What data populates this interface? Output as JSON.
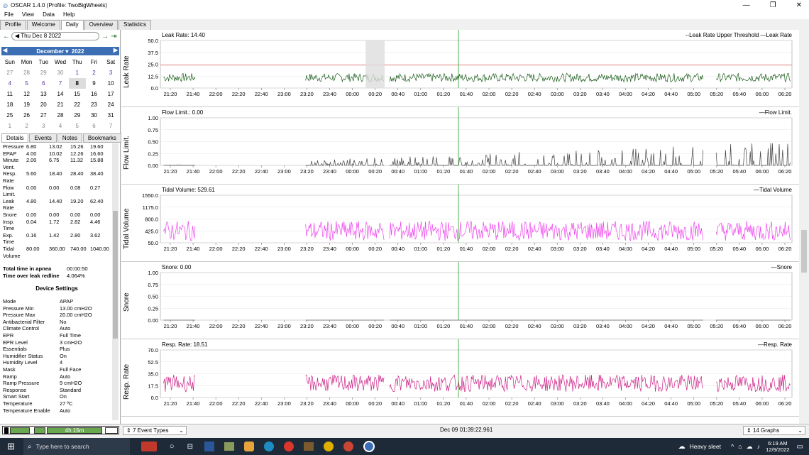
{
  "window": {
    "title": "OSCAR 1.4.0 (Profile: TwoBigWheels)"
  },
  "menu": [
    "File",
    "View",
    "Data",
    "Help"
  ],
  "tabs": [
    "Profile",
    "Welcome",
    "Daily",
    "Overview",
    "Statistics"
  ],
  "datebar": {
    "date": "Thu Dec 8 2022"
  },
  "calendar": {
    "month": "December",
    "year": "2022",
    "dow": [
      "Sun",
      "Mon",
      "Tue",
      "Wed",
      "Thu",
      "Fri",
      "Sat"
    ],
    "days": [
      [
        "27",
        "28",
        "29",
        "30",
        "1",
        "2",
        "3"
      ],
      [
        "4",
        "5",
        "6",
        "7",
        "8",
        "9",
        "10"
      ],
      [
        "11",
        "12",
        "13",
        "14",
        "15",
        "16",
        "17"
      ],
      [
        "18",
        "19",
        "20",
        "21",
        "22",
        "23",
        "24"
      ],
      [
        "25",
        "26",
        "27",
        "28",
        "29",
        "30",
        "31"
      ],
      [
        "1",
        "2",
        "3",
        "4",
        "5",
        "6",
        "7"
      ]
    ]
  },
  "subtabs": [
    "Details",
    "Events",
    "Notes",
    "Bookmarks"
  ],
  "stats": [
    [
      "Pressure",
      "6.80",
      "13.02",
      "15.26",
      "19.60"
    ],
    [
      "EPAP",
      "4.00",
      "10.02",
      "12.26",
      "16.60"
    ],
    [
      "Minute",
      "2.00",
      "6.75",
      "11.32",
      "15.88"
    ],
    [
      "Vent.",
      "",
      "",
      "",
      ""
    ],
    [
      "Resp.",
      "5.60",
      "18.40",
      "28.40",
      "38.40"
    ],
    [
      "Rate",
      "",
      "",
      "",
      ""
    ],
    [
      "Flow",
      "0.00",
      "0.00",
      "0.08",
      "0.27"
    ],
    [
      "Limit.",
      "",
      "",
      "",
      ""
    ],
    [
      "Leak",
      "4.80",
      "14.40",
      "19.20",
      "62.40"
    ],
    [
      "Rate",
      "",
      "",
      "",
      ""
    ],
    [
      "Snore",
      "0.00",
      "0.00",
      "0.00",
      "0.00"
    ],
    [
      "Insp.",
      "0.04",
      "1.72",
      "2.82",
      "4.46"
    ],
    [
      "Time",
      "",
      "",
      "",
      ""
    ],
    [
      "Exp.",
      "0.16",
      "1.42",
      "2.80",
      "3.62"
    ],
    [
      "Time",
      "",
      "",
      "",
      ""
    ],
    [
      "Tidal",
      "80.00",
      "360.00",
      "740.00",
      "1040.00"
    ],
    [
      "Volume",
      "",
      "",
      "",
      ""
    ]
  ],
  "totals": [
    [
      "Total time in apnea",
      "00:00:50"
    ],
    [
      "Time over leak redline",
      "4.064%"
    ]
  ],
  "device_settings_title": "Device Settings",
  "device_settings": [
    [
      "Mode",
      "APAP"
    ],
    [
      "Pressure Min",
      "13.00 cmH2O"
    ],
    [
      "Pressure Max",
      "20.00 cmH2O"
    ],
    [
      "Antibacterial Filter",
      "No"
    ],
    [
      "Climate Control",
      "Auto"
    ],
    [
      "EPR",
      "Full Time"
    ],
    [
      "EPR Level",
      "3 cmH2O"
    ],
    [
      "Essentials",
      "Plus"
    ],
    [
      "Humidifier Status",
      "On"
    ],
    [
      "Humidity Level",
      "4"
    ],
    [
      "Mask",
      "Full Face"
    ],
    [
      "Ramp",
      "Auto"
    ],
    [
      "Ramp Pressure",
      "9 cmH2O"
    ],
    [
      "Response",
      "Standard"
    ],
    [
      "Smart Start",
      "On"
    ],
    [
      "Temperature",
      "27 ºC"
    ],
    [
      "Temperature Enable",
      "Auto"
    ]
  ],
  "xticks": [
    "21:20",
    "21:40",
    "22:00",
    "22:20",
    "22:40",
    "23:00",
    "23:20",
    "23:40",
    "00:00",
    "00:20",
    "00:40",
    "01:00",
    "01:20",
    "01:40",
    "02:00",
    "02:20",
    "02:40",
    "03:00",
    "03:20",
    "03:40",
    "04:00",
    "04:20",
    "04:40",
    "05:00",
    "05:20",
    "05:40",
    "06:00",
    "06:20"
  ],
  "graphs": [
    {
      "ylabel": "Leak Rate",
      "title": "Leak Rate: 14.40",
      "legend": "--Leak Rate Upper Threshold —Leak Rate",
      "ticks": [
        "50.0",
        "37.5",
        "25.0",
        "12.5",
        "0.0"
      ],
      "color": "#1a5c1a"
    },
    {
      "ylabel": "Flow Limit.",
      "title": "Flow Limit.: 0.00",
      "legend": "—Flow Limit.",
      "ticks": [
        "1.00",
        "0.75",
        "0.50",
        "0.25",
        "0.00"
      ],
      "color": "#444444"
    },
    {
      "ylabel": "Tidal Volume",
      "title": "Tidal Volume: 529.61",
      "legend": "—Tidal Volume",
      "ticks": [
        "1550.0",
        "1175.0",
        "800.0",
        "425.0",
        "50.0"
      ],
      "color": "#ee44ee"
    },
    {
      "ylabel": "Snore",
      "title": "Snore: 0.00",
      "legend": "—Snore",
      "ticks": [
        "1.00",
        "0.75",
        "0.50",
        "0.25",
        "0.00"
      ],
      "color": "#666666"
    },
    {
      "ylabel": "Resp. Rate",
      "title": "Resp. Rate: 18.51",
      "legend": "—Resp. Rate",
      "ticks": [
        "70.0",
        "52.5",
        "35.0",
        "17.5",
        "0.0"
      ],
      "color": "#cc2288"
    }
  ],
  "status": {
    "duration": "4h 15m",
    "event_types": "7 Event Types",
    "cursor_time": "Dec 09 01:39:22.961",
    "graphs_count": "14 Graphs"
  },
  "taskbar": {
    "search_placeholder": "Type here to search",
    "weather": "Heavy sleet",
    "time": "6:19 AM",
    "date": "12/9/2022"
  }
}
